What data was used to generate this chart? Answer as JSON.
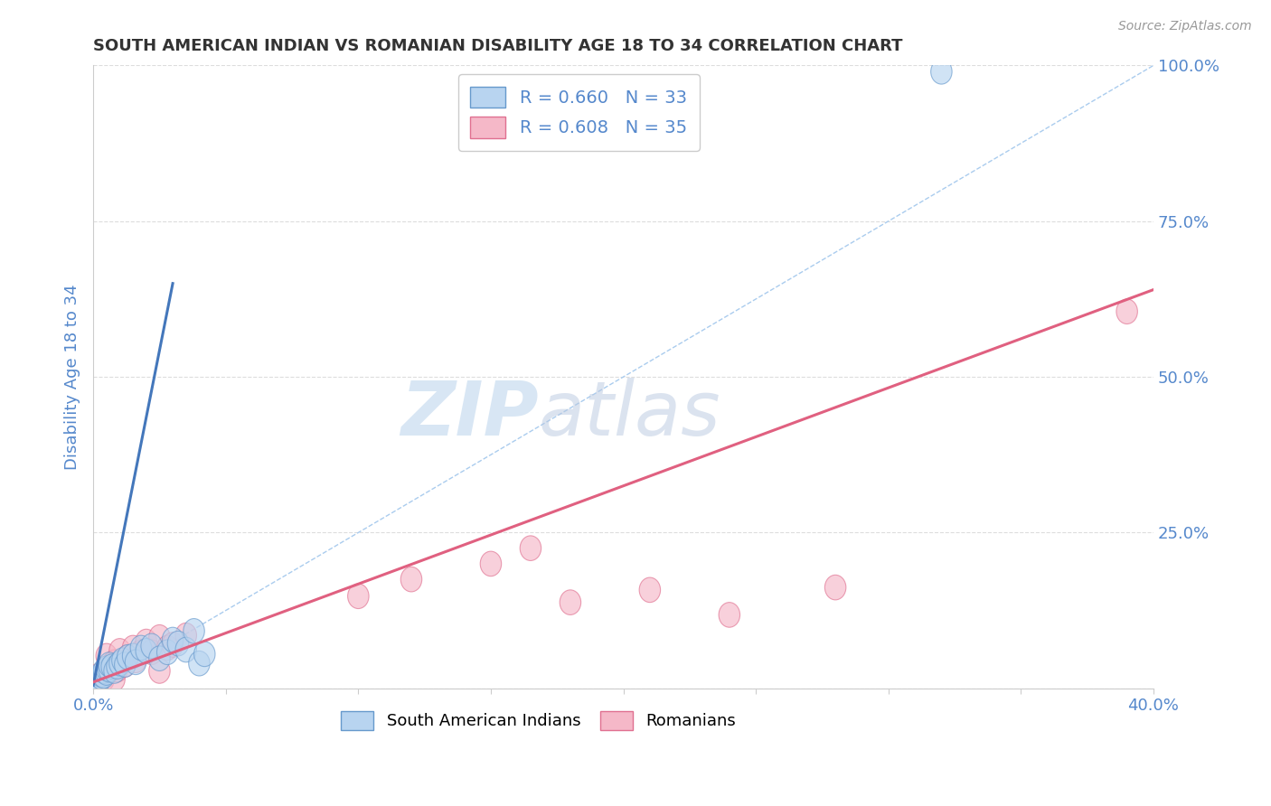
{
  "title": "SOUTH AMERICAN INDIAN VS ROMANIAN DISABILITY AGE 18 TO 34 CORRELATION CHART",
  "source": "Source: ZipAtlas.com",
  "ylabel": "Disability Age 18 to 34",
  "xlim": [
    0.0,
    0.4
  ],
  "ylim": [
    0.0,
    1.0
  ],
  "blue_fill": "#B8D4F0",
  "blue_edge": "#6699CC",
  "pink_fill": "#F5B8C8",
  "pink_edge": "#E07090",
  "blue_line_color": "#4477BB",
  "pink_line_color": "#E06080",
  "ref_line_color": "#AACCEE",
  "legend_blue_R": "R = 0.660",
  "legend_blue_N": "N = 33",
  "legend_pink_R": "R = 0.608",
  "legend_pink_N": "N = 35",
  "legend_blue_label": "South American Indians",
  "legend_pink_label": "Romanians",
  "tick_color": "#5588CC",
  "grid_color": "#DDDDDD",
  "title_color": "#333333",
  "blue_scatter_x": [
    0.001,
    0.001,
    0.002,
    0.002,
    0.003,
    0.003,
    0.004,
    0.004,
    0.005,
    0.005,
    0.006,
    0.006,
    0.007,
    0.008,
    0.009,
    0.01,
    0.011,
    0.012,
    0.013,
    0.015,
    0.016,
    0.018,
    0.02,
    0.022,
    0.025,
    0.028,
    0.03,
    0.032,
    0.035,
    0.038,
    0.04,
    0.042,
    0.32
  ],
  "blue_scatter_y": [
    0.008,
    0.012,
    0.01,
    0.015,
    0.018,
    0.022,
    0.02,
    0.028,
    0.025,
    0.032,
    0.03,
    0.038,
    0.035,
    0.028,
    0.035,
    0.04,
    0.045,
    0.038,
    0.05,
    0.052,
    0.042,
    0.065,
    0.06,
    0.068,
    0.048,
    0.058,
    0.078,
    0.072,
    0.062,
    0.092,
    0.04,
    0.055,
    0.99
  ],
  "pink_scatter_x": [
    0.001,
    0.002,
    0.002,
    0.003,
    0.004,
    0.004,
    0.005,
    0.006,
    0.006,
    0.007,
    0.008,
    0.008,
    0.009,
    0.01,
    0.012,
    0.013,
    0.015,
    0.016,
    0.018,
    0.02,
    0.022,
    0.025,
    0.025,
    0.028,
    0.03,
    0.035,
    0.1,
    0.12,
    0.15,
    0.165,
    0.18,
    0.21,
    0.24,
    0.28,
    0.39
  ],
  "pink_scatter_y": [
    0.008,
    0.012,
    0.02,
    0.018,
    0.022,
    0.015,
    0.052,
    0.032,
    0.028,
    0.038,
    0.042,
    0.015,
    0.03,
    0.06,
    0.038,
    0.05,
    0.065,
    0.045,
    0.058,
    0.075,
    0.058,
    0.028,
    0.082,
    0.065,
    0.07,
    0.085,
    0.148,
    0.175,
    0.2,
    0.225,
    0.138,
    0.158,
    0.118,
    0.162,
    0.605
  ],
  "blue_trend_x": [
    0.0,
    0.03
  ],
  "blue_trend_y": [
    0.005,
    0.65
  ],
  "pink_trend_x": [
    0.0,
    0.4
  ],
  "pink_trend_y": [
    0.01,
    0.64
  ],
  "ref_line_x": [
    0.0,
    0.4
  ],
  "ref_line_y": [
    0.0,
    1.0
  ],
  "x_ticks": [
    0.0,
    0.05,
    0.1,
    0.15,
    0.2,
    0.25,
    0.3,
    0.35,
    0.4
  ],
  "y_ticks": [
    0.0,
    0.25,
    0.5,
    0.75,
    1.0
  ]
}
